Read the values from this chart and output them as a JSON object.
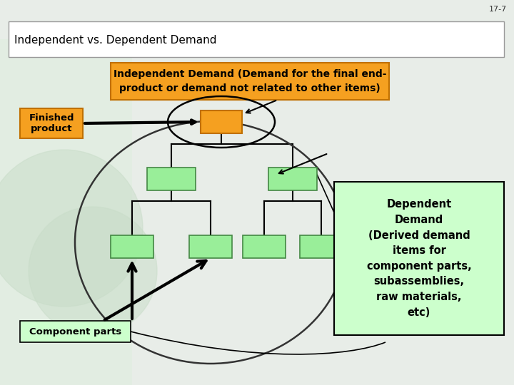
{
  "bg_color": "#e8ede8",
  "slide_bg": "#ffffff",
  "title_text": "Independent vs. Dependent Demand",
  "slide_num": "17-7",
  "indep_box_text": "Independent Demand (Demand for the final end-\nproduct or demand not related to other items)",
  "indep_box_color": "#f5a020",
  "indep_box_text_color": "#000000",
  "finished_label": "Finished\nproduct",
  "finished_label_color": "#f5a020",
  "finished_label_text_color": "#000000",
  "component_label": "Component parts",
  "component_label_color": "#ccffcc",
  "component_label_border": "#000000",
  "dependent_text": "Dependent\nDemand\n(Derived demand\nitems for\ncomponent parts,\nsubassemblies,\nraw materials,\netc)",
  "dependent_box_color": "#ccffcc",
  "dependent_box_border": "#000000",
  "green_box_color": "#99ee99",
  "orange_box_color": "#f5a020",
  "ellipse_color": "#000000",
  "tree_line_color": "#000000",
  "arrow_color": "#000000",
  "watermark_color": "#d8ead8"
}
